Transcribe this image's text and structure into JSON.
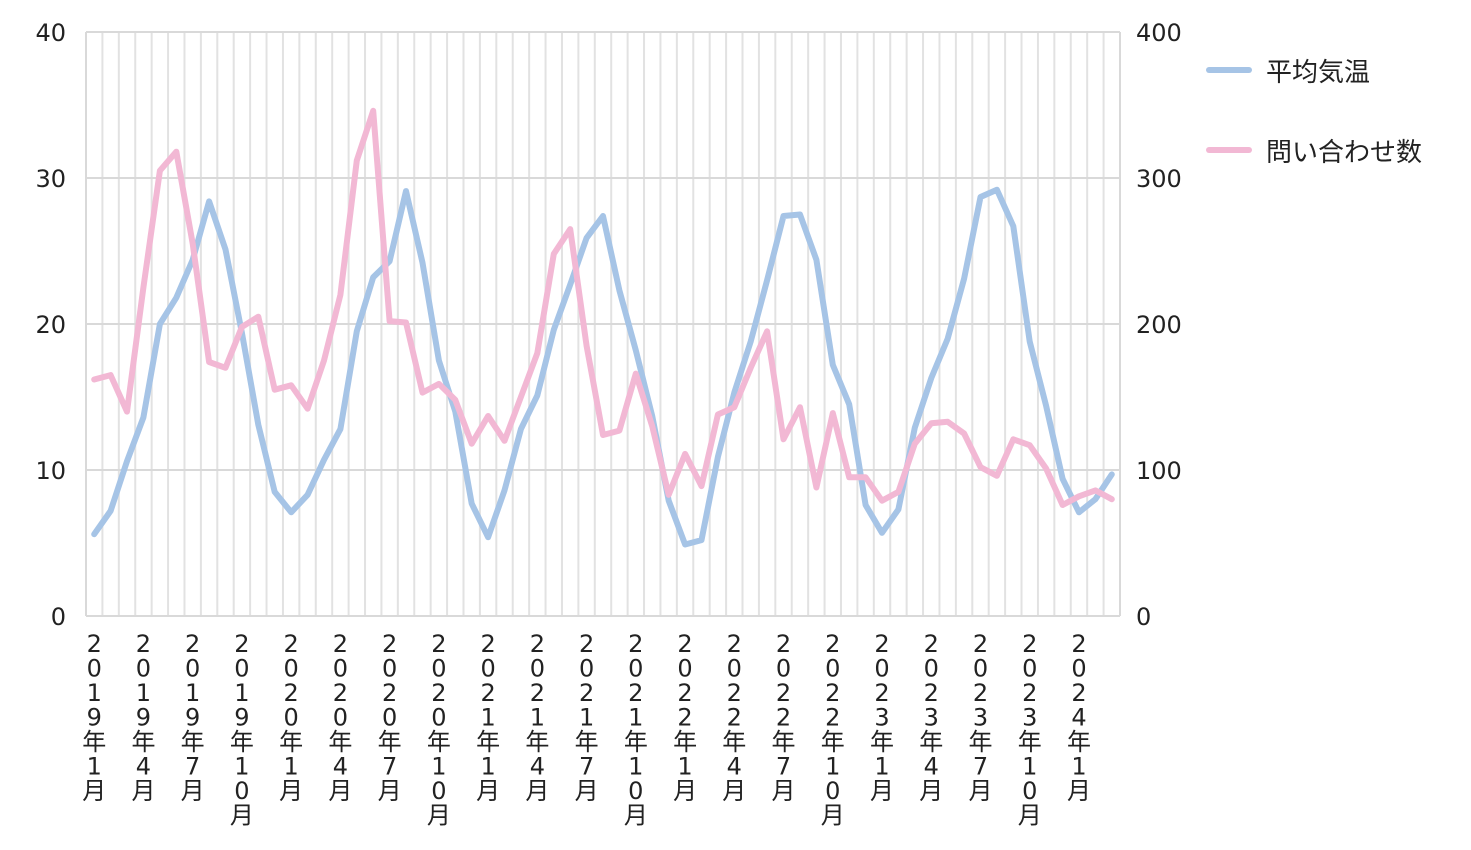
{
  "chart_data": {
    "type": "line",
    "title": "",
    "xlabel": "",
    "ylabel": "",
    "y_left_ticks": [
      "0",
      "10",
      "20",
      "30",
      "40"
    ],
    "y_right_ticks": [
      "0",
      "100",
      "200",
      "300",
      "400"
    ],
    "y_left_lim": [
      0,
      40
    ],
    "y_right_lim": [
      0,
      400
    ],
    "grid": "horizontal and vertical",
    "legend_position": "top-right",
    "x": [
      "2019-01",
      "2019-02",
      "2019-03",
      "2019-04",
      "2019-05",
      "2019-06",
      "2019-07",
      "2019-08",
      "2019-09",
      "2019-10",
      "2019-11",
      "2019-12",
      "2020-01",
      "2020-02",
      "2020-03",
      "2020-04",
      "2020-05",
      "2020-06",
      "2020-07",
      "2020-08",
      "2020-09",
      "2020-10",
      "2020-11",
      "2020-12",
      "2021-01",
      "2021-02",
      "2021-03",
      "2021-04",
      "2021-05",
      "2021-06",
      "2021-07",
      "2021-08",
      "2021-09",
      "2021-10",
      "2021-11",
      "2021-12",
      "2022-01",
      "2022-02",
      "2022-03",
      "2022-04",
      "2022-05",
      "2022-06",
      "2022-07",
      "2022-08",
      "2022-09",
      "2022-10",
      "2022-11",
      "2022-12",
      "2023-01",
      "2023-02",
      "2023-03",
      "2023-04",
      "2023-05",
      "2023-06",
      "2023-07",
      "2023-08",
      "2023-09",
      "2023-10",
      "2023-11",
      "2023-12",
      "2024-01",
      "2024-02",
      "2024-03"
    ],
    "x_tick_labels": [
      "2019年1月",
      "2019年4月",
      "2019年7月",
      "2019年10月",
      "2020年1月",
      "2020年4月",
      "2020年7月",
      "2020年10月",
      "2021年1月",
      "2021年4月",
      "2021年7月",
      "2021年10月",
      "2022年1月",
      "2022年4月",
      "2022年7月",
      "2022年10月",
      "2023年1月",
      "2023年4月",
      "2023年7月",
      "2023年10月",
      "2024年1月"
    ],
    "series": [
      {
        "name": "平均気温",
        "axis": "left",
        "color": "#a6c4e6",
        "values": [
          5.6,
          7.2,
          10.6,
          13.6,
          20.0,
          21.8,
          24.4,
          28.4,
          25.1,
          19.4,
          13.1,
          8.5,
          7.1,
          8.3,
          10.7,
          12.8,
          19.5,
          23.2,
          24.3,
          29.1,
          24.2,
          17.5,
          14.0,
          7.7,
          5.4,
          8.6,
          12.8,
          15.1,
          19.6,
          22.7,
          25.9,
          27.4,
          22.3,
          18.2,
          13.7,
          7.9,
          4.9,
          5.2,
          10.9,
          15.3,
          18.8,
          23.0,
          27.4,
          27.5,
          24.4,
          17.2,
          14.5,
          7.6,
          5.7,
          7.3,
          12.9,
          16.3,
          19.0,
          23.1,
          28.7,
          29.2,
          26.7,
          18.8,
          14.4,
          9.4,
          7.1,
          8.0,
          9.7
        ]
      },
      {
        "name": "問い合わせ数",
        "axis": "right",
        "color": "#f2b8d4",
        "values": [
          162,
          165,
          140,
          225,
          305,
          318,
          255,
          174,
          170,
          198,
          205,
          155,
          158,
          142,
          175,
          220,
          312,
          346,
          202,
          201,
          153,
          159,
          148,
          118,
          137,
          120,
          150,
          180,
          248,
          265,
          185,
          124,
          127,
          166,
          130,
          83,
          111,
          89,
          138,
          143,
          170,
          195,
          121,
          143,
          88,
          139,
          95,
          95,
          79,
          85,
          118,
          132,
          133,
          125,
          102,
          96,
          121,
          117,
          101,
          76,
          82,
          86,
          80
        ]
      }
    ]
  }
}
